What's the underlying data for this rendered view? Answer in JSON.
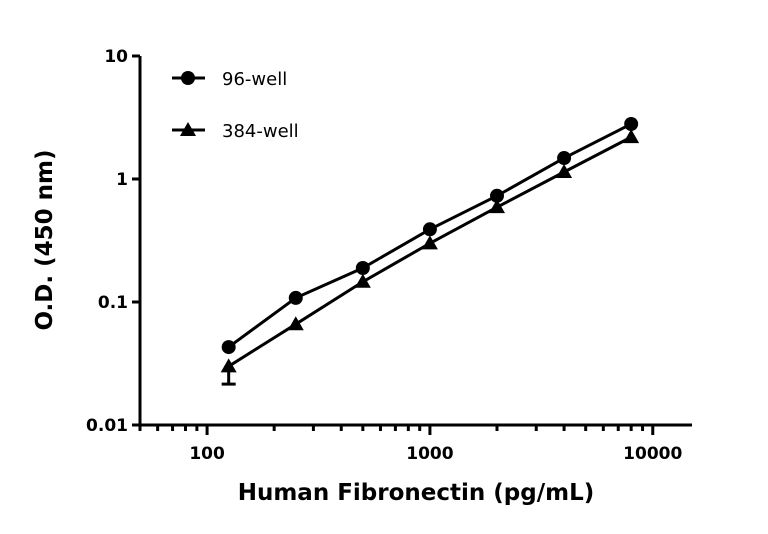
{
  "chart_data": {
    "type": "line",
    "title": "",
    "xlabel": "Human Fibronectin (pg/mL)",
    "ylabel": "O.D. (450 nm)",
    "x_scale": "log",
    "y_scale": "log",
    "xlim": [
      50,
      15000
    ],
    "ylim": [
      0.01,
      10
    ],
    "x_ticks": [
      {
        "value": 100,
        "label": "100"
      },
      {
        "value": 1000,
        "label": "1000"
      },
      {
        "value": 10000,
        "label": "10000"
      }
    ],
    "y_ticks": [
      {
        "value": 0.01,
        "label": "0.01"
      },
      {
        "value": 0.1,
        "label": "0.1"
      },
      {
        "value": 1,
        "label": "1"
      },
      {
        "value": 10,
        "label": "10"
      }
    ],
    "grid": false,
    "legend_placement": "top-left",
    "x": [
      125,
      250,
      500,
      1000,
      2000,
      4000,
      8000
    ],
    "series": [
      {
        "name": "96-well",
        "marker": "circle",
        "color": "#000000",
        "values": [
          0.043,
          0.108,
          0.189,
          0.39,
          0.73,
          1.48,
          2.8
        ]
      },
      {
        "name": "384-well",
        "marker": "triangle",
        "color": "#000000",
        "values": [
          0.03,
          0.066,
          0.146,
          0.3,
          0.59,
          1.14,
          2.19
        ],
        "error_low": [
          0.0215,
          null,
          null,
          null,
          null,
          null,
          null
        ]
      }
    ]
  }
}
